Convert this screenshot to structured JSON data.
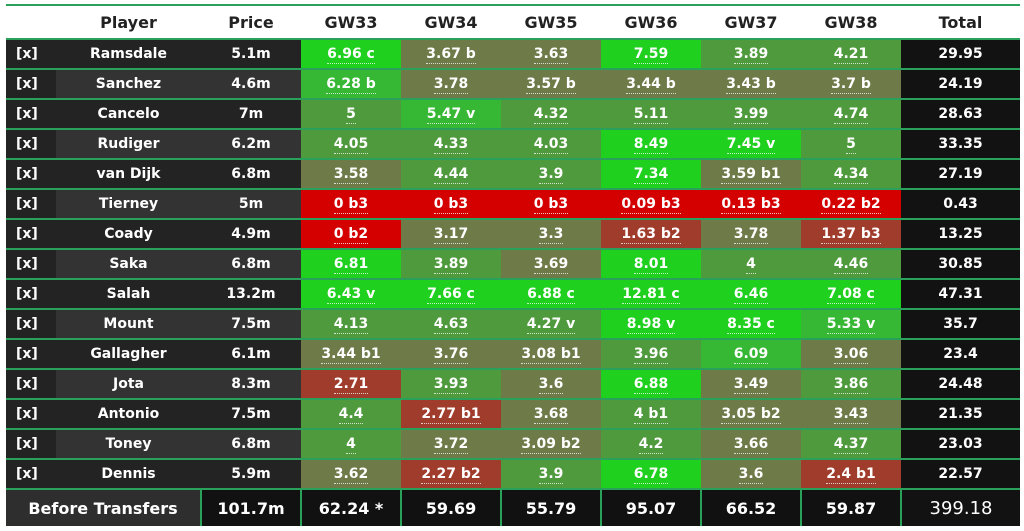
{
  "headers": {
    "remove": "",
    "player": "Player",
    "price": "Price",
    "gws": [
      "GW33",
      "GW34",
      "GW35",
      "GW36",
      "GW37",
      "GW38"
    ],
    "total": "Total"
  },
  "remove_label": "[x]",
  "colors": {
    "accent_green": "#2aa15a",
    "very_high": "#1fd01f",
    "high": "#36b834",
    "medium": "#4f9a3c",
    "low": "#6e7a48",
    "very_low": "#a03c2c",
    "blank": "#d40000"
  },
  "players": [
    {
      "name": "Ramsdale",
      "price": "5.1m",
      "gws": [
        "6.96 c",
        "3.67 b",
        "3.63",
        "7.59",
        "3.89",
        "4.21"
      ],
      "total": "29.95"
    },
    {
      "name": "Sanchez",
      "price": "4.6m",
      "gws": [
        "6.28 b",
        "3.78",
        "3.57 b",
        "3.44 b",
        "3.43 b",
        "3.7 b"
      ],
      "total": "24.19"
    },
    {
      "name": "Cancelo",
      "price": "7m",
      "gws": [
        "5",
        "5.47 v",
        "4.32",
        "5.11",
        "3.99",
        "4.74"
      ],
      "total": "28.63"
    },
    {
      "name": "Rudiger",
      "price": "6.2m",
      "gws": [
        "4.05",
        "4.33",
        "4.03",
        "8.49",
        "7.45 v",
        "5"
      ],
      "total": "33.35"
    },
    {
      "name": "van Dijk",
      "price": "6.8m",
      "gws": [
        "3.58",
        "4.44",
        "3.9",
        "7.34",
        "3.59 b1",
        "4.34"
      ],
      "total": "27.19"
    },
    {
      "name": "Tierney",
      "price": "5m",
      "gws": [
        "0 b3",
        "0 b3",
        "0 b3",
        "0.09 b3",
        "0.13 b3",
        "0.22 b2"
      ],
      "total": "0.43"
    },
    {
      "name": "Coady",
      "price": "4.9m",
      "gws": [
        "0 b2",
        "3.17",
        "3.3",
        "1.63 b2",
        "3.78",
        "1.37 b3"
      ],
      "total": "13.25"
    },
    {
      "name": "Saka",
      "price": "6.8m",
      "gws": [
        "6.81",
        "3.89",
        "3.69",
        "8.01",
        "4",
        "4.46"
      ],
      "total": "30.85"
    },
    {
      "name": "Salah",
      "price": "13.2m",
      "gws": [
        "6.43 v",
        "7.66 c",
        "6.88 c",
        "12.81 c",
        "6.46",
        "7.08 c"
      ],
      "total": "47.31"
    },
    {
      "name": "Mount",
      "price": "7.5m",
      "gws": [
        "4.13",
        "4.63",
        "4.27 v",
        "8.98 v",
        "8.35 c",
        "5.33 v"
      ],
      "total": "35.7"
    },
    {
      "name": "Gallagher",
      "price": "6.1m",
      "gws": [
        "3.44 b1",
        "3.76",
        "3.08 b1",
        "3.96",
        "6.09",
        "3.06"
      ],
      "total": "23.4"
    },
    {
      "name": "Jota",
      "price": "8.3m",
      "gws": [
        "2.71",
        "3.93",
        "3.6",
        "6.88",
        "3.49",
        "3.86"
      ],
      "total": "24.48"
    },
    {
      "name": "Antonio",
      "price": "7.5m",
      "gws": [
        "4.4",
        "2.77 b1",
        "3.68",
        "4 b1",
        "3.05 b2",
        "3.43"
      ],
      "total": "21.35"
    },
    {
      "name": "Toney",
      "price": "6.8m",
      "gws": [
        "4",
        "3.72",
        "3.09 b2",
        "4.2",
        "3.66",
        "4.37"
      ],
      "total": "23.03"
    },
    {
      "name": "Dennis",
      "price": "5.9m",
      "gws": [
        "3.62",
        "2.27 b2",
        "3.9",
        "6.78",
        "3.6",
        "2.4 b1"
      ],
      "total": "22.57"
    }
  ],
  "footer": {
    "label": "Before Transfers",
    "price": "101.7m",
    "gws": [
      "62.24 *",
      "59.69",
      "55.79",
      "95.07",
      "66.52",
      "59.87"
    ],
    "total": "399.18"
  }
}
